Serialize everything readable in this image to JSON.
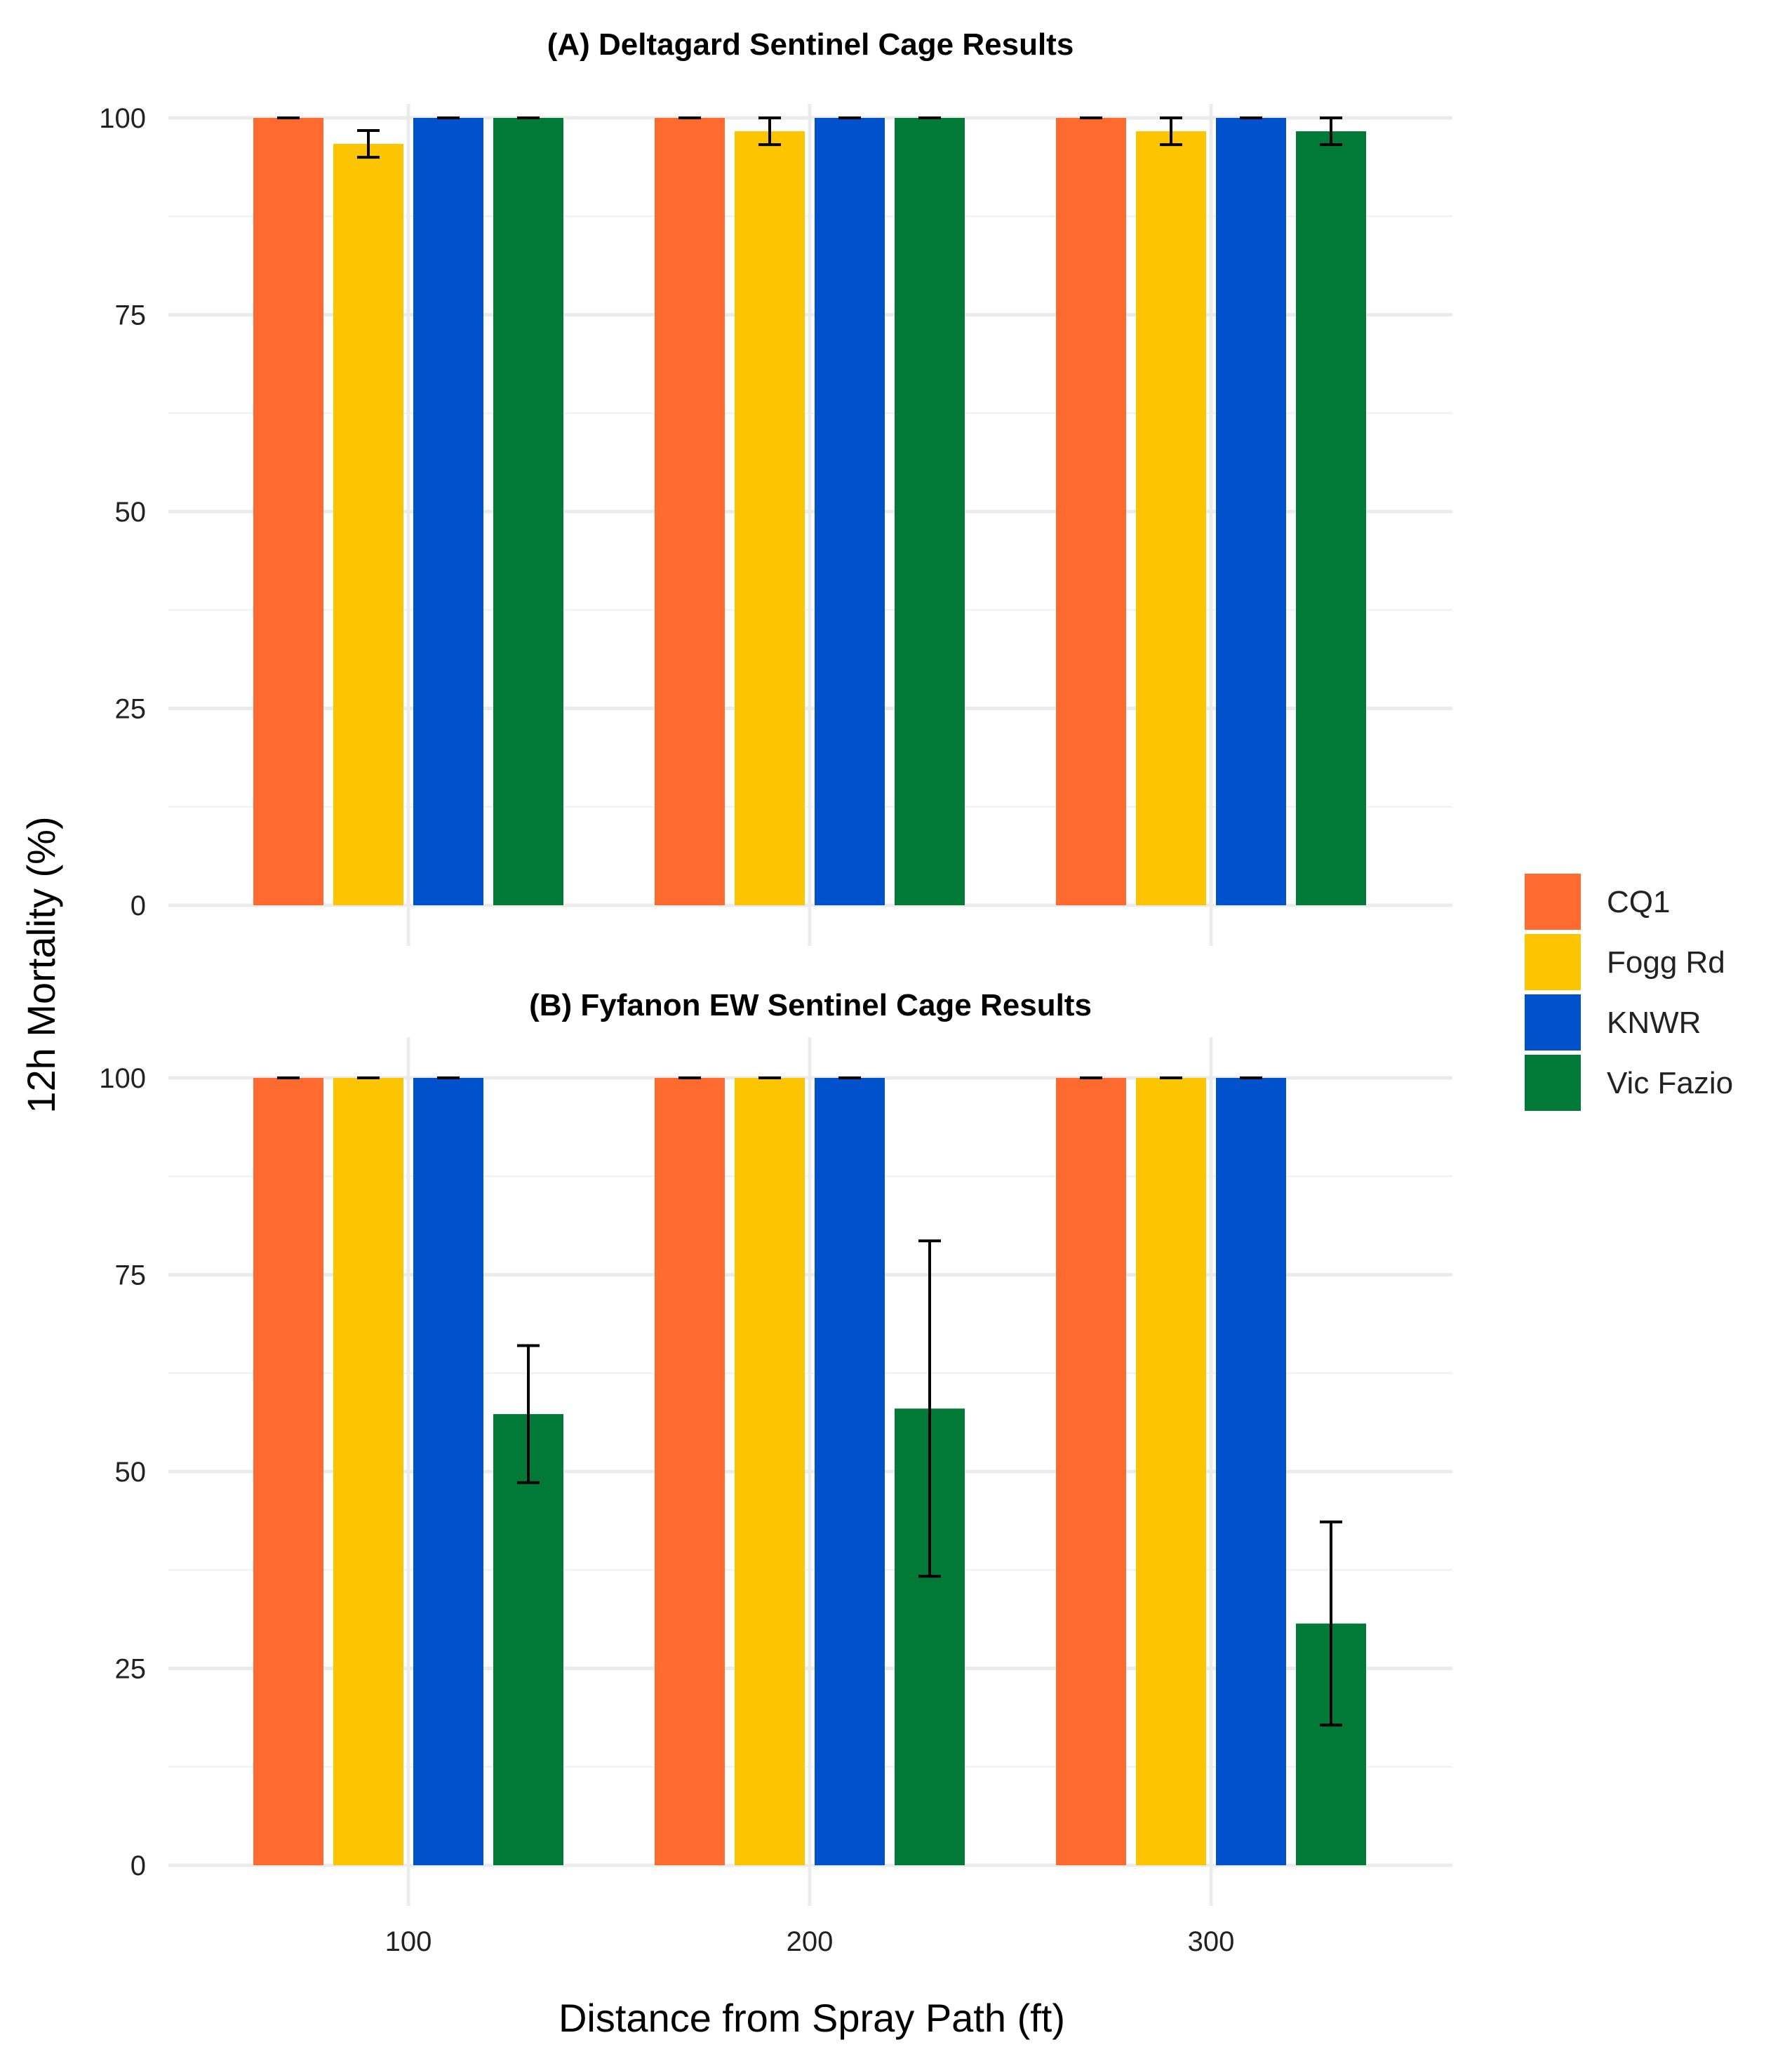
{
  "chart_data": [
    {
      "type": "bar",
      "title": "(A) Deltagard Sentinel Cage Results",
      "categories": [
        "100",
        "200",
        "300"
      ],
      "ylim": [
        0,
        100
      ],
      "yticks": [
        0,
        25,
        50,
        75,
        100
      ],
      "grid": true,
      "series": [
        {
          "name": "CQ1",
          "color": "#FF6A2E",
          "values": [
            100,
            100,
            100
          ],
          "error": [
            0,
            0,
            0
          ]
        },
        {
          "name": "Fogg Rd",
          "color": "#FDC400",
          "values": [
            96.7,
            98.3,
            98.3
          ],
          "error": [
            1.7,
            1.7,
            1.7
          ]
        },
        {
          "name": "KNWR",
          "color": "#0052CC",
          "values": [
            100,
            100,
            100
          ],
          "error": [
            0,
            0,
            0
          ]
        },
        {
          "name": "Vic Fazio",
          "color": "#007A36",
          "values": [
            100,
            100,
            98.3
          ],
          "error": [
            0,
            0,
            1.7
          ]
        }
      ]
    },
    {
      "type": "bar",
      "title": "(B) Fyfanon EW Sentinel Cage Results",
      "categories": [
        "100",
        "200",
        "300"
      ],
      "ylim": [
        0,
        100
      ],
      "yticks": [
        0,
        25,
        50,
        75,
        100
      ],
      "grid": true,
      "series": [
        {
          "name": "CQ1",
          "color": "#FF6A2E",
          "values": [
            100,
            100,
            100
          ],
          "error": [
            0,
            0,
            0
          ]
        },
        {
          "name": "Fogg Rd",
          "color": "#FDC400",
          "values": [
            100,
            100,
            100
          ],
          "error": [
            0,
            0,
            0
          ]
        },
        {
          "name": "KNWR",
          "color": "#0052CC",
          "values": [
            100,
            100,
            100
          ],
          "error": [
            0,
            0,
            0
          ]
        },
        {
          "name": "Vic Fazio",
          "color": "#007A36",
          "values": [
            57.3,
            58.0,
            30.7
          ],
          "error": [
            8.7,
            21.3,
            12.9
          ]
        }
      ]
    }
  ],
  "xlabel": "Distance from Spray Path (ft)",
  "ylabel": "12h Mortality (%)",
  "legend": {
    "position": "right",
    "items": [
      {
        "name": "CQ1",
        "color": "#FF6A2E"
      },
      {
        "name": "Fogg Rd",
        "color": "#FDC400"
      },
      {
        "name": "KNWR",
        "color": "#0052CC"
      },
      {
        "name": "Vic Fazio",
        "color": "#007A36"
      }
    ]
  }
}
